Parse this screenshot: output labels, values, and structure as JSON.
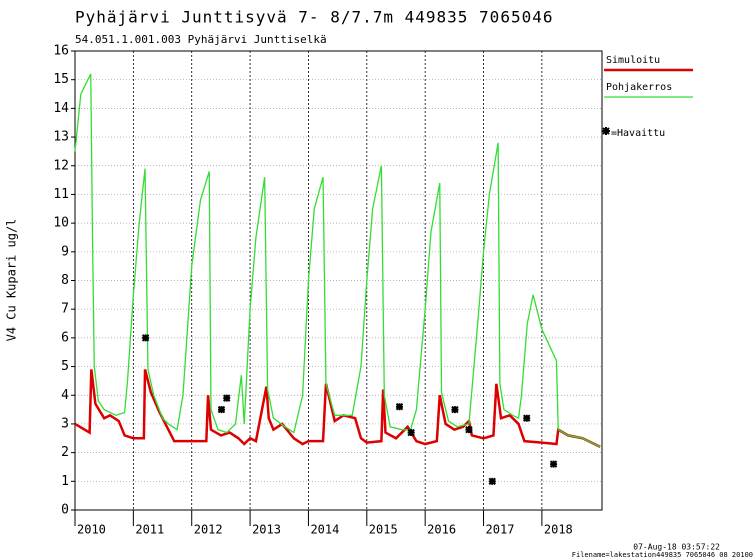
{
  "chart_data": {
    "type": "line",
    "title": "Pyhäjärvi Junttisyvä 7- 8/7.7m  449835 7065046",
    "subtitle": "54.051.1.001.003 Pyhäjärvi Junttiselkä",
    "y_label": "V4 Cu Kupari ug/l",
    "footer": [
      "07-Aug-18 03:57:22",
      "Filename=lakestation449835 7065046 08 20100"
    ],
    "xlim": [
      2010,
      2019.03
    ],
    "xticks": [
      2010,
      2011,
      2012,
      2013,
      2014,
      2015,
      2016,
      2017,
      2018
    ],
    "ylim": [
      0,
      16
    ],
    "yticks": [
      0,
      1,
      2,
      3,
      4,
      5,
      6,
      7,
      8,
      9,
      10,
      11,
      12,
      13,
      14,
      15,
      16
    ],
    "grid": true,
    "legend": "right",
    "series": [
      {
        "name": "Simuloitu",
        "color": "#dd0000",
        "mark": "line",
        "width": 2.5,
        "x": [
          2010.0,
          2010.25,
          2010.28,
          2010.35,
          2010.5,
          2010.6,
          2010.75,
          2010.85,
          2011.0,
          2011.18,
          2011.2,
          2011.3,
          2011.45,
          2011.6,
          2011.7,
          2012.0,
          2012.25,
          2012.28,
          2012.33,
          2012.5,
          2012.65,
          2012.8,
          2012.9,
          2013.0,
          2013.1,
          2013.28,
          2013.32,
          2013.4,
          2013.55,
          2013.75,
          2013.9,
          2014.0,
          2014.25,
          2014.3,
          2014.45,
          2014.6,
          2014.8,
          2014.9,
          2015.0,
          2015.25,
          2015.28,
          2015.32,
          2015.5,
          2015.7,
          2015.85,
          2016.0,
          2016.2,
          2016.25,
          2016.35,
          2016.5,
          2016.65,
          2016.75,
          2016.8,
          2017.0,
          2017.17,
          2017.22,
          2017.3,
          2017.45,
          2017.6,
          2017.7,
          2018.0,
          2018.25,
          2018.28,
          2018.45,
          2018.7,
          2019.0
        ],
        "values": [
          3.0,
          2.7,
          4.9,
          3.7,
          3.2,
          3.3,
          3.1,
          2.6,
          2.5,
          2.5,
          4.9,
          4.1,
          3.4,
          2.8,
          2.4,
          2.4,
          2.4,
          4.0,
          2.8,
          2.6,
          2.7,
          2.5,
          2.3,
          2.5,
          2.4,
          4.3,
          3.2,
          2.8,
          3.0,
          2.5,
          2.3,
          2.4,
          2.4,
          4.4,
          3.1,
          3.3,
          3.2,
          2.5,
          2.35,
          2.4,
          4.2,
          2.7,
          2.5,
          2.9,
          2.4,
          2.3,
          2.4,
          4.0,
          3.0,
          2.8,
          2.9,
          3.1,
          2.6,
          2.5,
          2.6,
          4.4,
          3.2,
          3.3,
          3.0,
          2.4,
          2.35,
          2.3,
          2.8,
          2.6,
          2.5,
          2.2
        ]
      },
      {
        "name": "Pohjakerros",
        "color": "#33dd33",
        "mark": "line",
        "width": 1.3,
        "x": [
          2010.0,
          2010.1,
          2010.27,
          2010.3,
          2010.33,
          2010.4,
          2010.5,
          2010.7,
          2010.85,
          2010.9,
          2011.0,
          2011.1,
          2011.2,
          2011.25,
          2011.35,
          2011.5,
          2011.6,
          2011.75,
          2011.85,
          2012.0,
          2012.15,
          2012.3,
          2012.33,
          2012.45,
          2012.6,
          2012.75,
          2012.85,
          2012.9,
          2013.0,
          2013.1,
          2013.25,
          2013.3,
          2013.4,
          2013.6,
          2013.75,
          2013.9,
          2014.0,
          2014.1,
          2014.25,
          2014.3,
          2014.45,
          2014.6,
          2014.75,
          2014.9,
          2015.0,
          2015.1,
          2015.25,
          2015.3,
          2015.4,
          2015.6,
          2015.75,
          2015.85,
          2016.0,
          2016.1,
          2016.25,
          2016.28,
          2016.4,
          2016.55,
          2016.75,
          2016.9,
          2017.0,
          2017.1,
          2017.25,
          2017.28,
          2017.35,
          2017.5,
          2017.6,
          2017.65,
          2017.75,
          2017.85,
          2018.0,
          2018.25,
          2018.28,
          2018.45,
          2018.7,
          2019.0
        ],
        "values": [
          12.5,
          14.5,
          15.2,
          9.5,
          5.0,
          3.8,
          3.5,
          3.3,
          3.4,
          4.5,
          7.5,
          10.0,
          11.9,
          4.9,
          4.0,
          3.2,
          3.0,
          2.8,
          4.0,
          8.5,
          10.8,
          11.8,
          3.5,
          2.8,
          2.7,
          3.0,
          4.7,
          3.0,
          7.0,
          9.5,
          11.6,
          4.2,
          3.2,
          2.9,
          2.7,
          4.0,
          8.0,
          10.5,
          11.6,
          4.4,
          3.3,
          3.3,
          3.3,
          5.0,
          8.0,
          10.5,
          12.0,
          4.0,
          2.9,
          2.8,
          2.8,
          3.5,
          7.0,
          9.7,
          11.4,
          4.1,
          3.1,
          2.9,
          3.0,
          6.5,
          9.0,
          11.0,
          12.8,
          4.4,
          3.5,
          3.3,
          3.2,
          4.0,
          6.5,
          7.5,
          6.3,
          5.2,
          2.8,
          2.6,
          2.5,
          2.2
        ]
      },
      {
        "name": "=Havaittu",
        "color": "#000000",
        "mark": "star",
        "x": [
          2011.21,
          2012.51,
          2012.6,
          2015.56,
          2015.76,
          2016.51,
          2016.75,
          2017.15,
          2017.74,
          2018.2
        ],
        "values": [
          6.0,
          3.5,
          3.9,
          3.6,
          2.7,
          3.5,
          2.8,
          1.0,
          3.2,
          1.6
        ]
      }
    ]
  }
}
